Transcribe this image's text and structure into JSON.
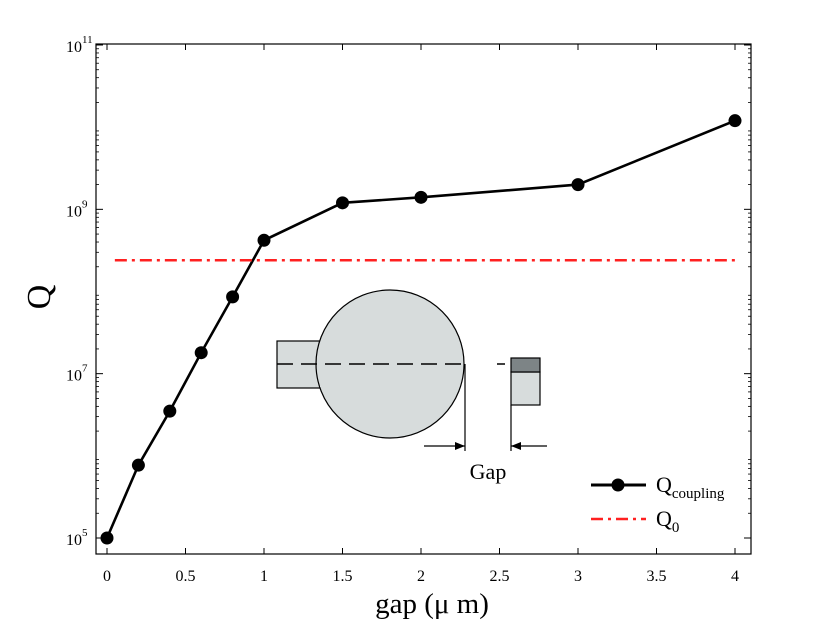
{
  "chart_data": {
    "type": "line",
    "xlabel": "gap (μ m)",
    "ylabel": "Q",
    "xlim": [
      0,
      4.3
    ],
    "ylim_log10": [
      5,
      11
    ],
    "y_scale": "log",
    "x_ticks": [
      0,
      0.5,
      1,
      1.5,
      2,
      2.5,
      3,
      3.5,
      4
    ],
    "x_tick_labels": [
      "0",
      "0.5",
      "1",
      "1.5",
      "2",
      "2.5",
      "3",
      "3.5",
      "4"
    ],
    "y_ticks": [
      {
        "base": "10",
        "exp": "5",
        "log10": 5
      },
      {
        "base": "10",
        "exp": "7",
        "log10": 7
      },
      {
        "base": "10",
        "exp": "9",
        "log10": 9
      },
      {
        "base": "10",
        "exp": "11",
        "log10": 11
      }
    ],
    "grid": false,
    "legend_position": "bottom-right",
    "series": [
      {
        "name_main": "Q",
        "name_sub": "coupling",
        "color": "#000000",
        "style": "solid-with-circle-markers",
        "x": [
          0,
          0.2,
          0.4,
          0.6,
          0.8,
          1.0,
          1.5,
          2.0,
          3.0,
          4.0
        ],
        "y": [
          100000.0,
          770000.0,
          3500000.0,
          18000000.0,
          86000000.0,
          420000000.0,
          1200000000.0,
          1400000000.0,
          2000000000.0,
          12000000000.0
        ]
      },
      {
        "name_main": "Q",
        "name_sub": "0",
        "color": "#ff2020",
        "style": "dash-dot",
        "y_constant": 240000000.0
      }
    ],
    "inset": {
      "label": "Gap",
      "fill": "#d7dcdc",
      "dark_fill": "#7d8486"
    }
  }
}
